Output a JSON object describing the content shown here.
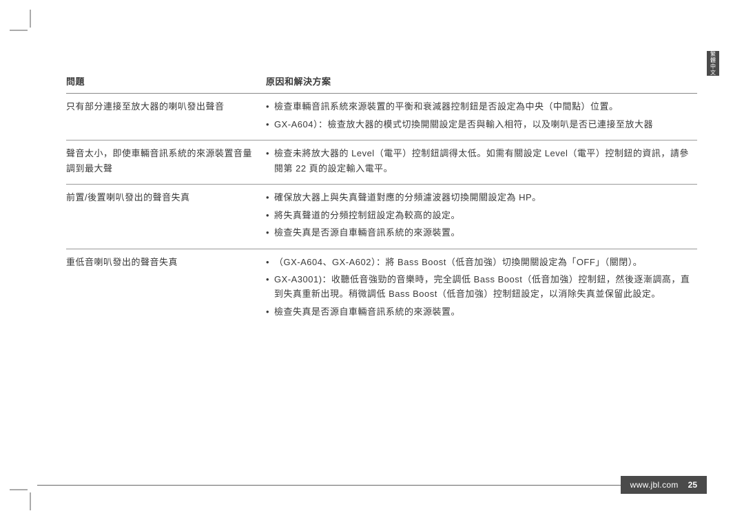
{
  "side_tab": "繁體中文",
  "header": {
    "problem": "問題",
    "solution": "原因和解決方案"
  },
  "rows": [
    {
      "problem": "只有部分連接至放大器的喇叭發出聲音",
      "solutions": [
        "檢查車輛音訊系統來源裝置的平衡和衰減器控制鈕是否設定為中央（中間點）位置。",
        "GX-A604）：檢查放大器的模式切換開關設定是否與輸入相符，以及喇叭是否已連接至放大器"
      ]
    },
    {
      "problem": "聲音太小，即使車輛音訊系統的來源裝置音量調到最大聲",
      "solutions": [
        "檢查未將放大器的 Level（電平）控制鈕調得太低。如需有關設定 Level（電平）控制鈕的資訊，請參閱第 22 頁的設定輸入電平。"
      ]
    },
    {
      "problem": "前置/後置喇叭發出的聲音失真",
      "solutions": [
        "確保放大器上與失真聲道對應的分頻濾波器切換開關設定為 HP。",
        "將失真聲道的分頻控制鈕設定為較高的設定。",
        "檢查失真是否源自車輛音訊系統的來源裝置。"
      ]
    },
    {
      "problem": "重低音喇叭發出的聲音失真",
      "solutions": [
        "（GX-A604、GX-A602）：將 Bass Boost（低音加強）切換開關設定為「OFF」（關閉）。",
        "GX-A3001)：收聽低音強勁的音樂時，完全調低 Bass Boost（低音加強）控制鈕，然後逐漸調高，直到失真重新出現。稍微調低 Bass Boost（低音加強）控制鈕設定，以消除失真並保留此設定。",
        "檢查失真是否源自車輛音訊系統的來源裝置。"
      ]
    }
  ],
  "footer": {
    "url": "www.jbl.com",
    "page": "25"
  }
}
